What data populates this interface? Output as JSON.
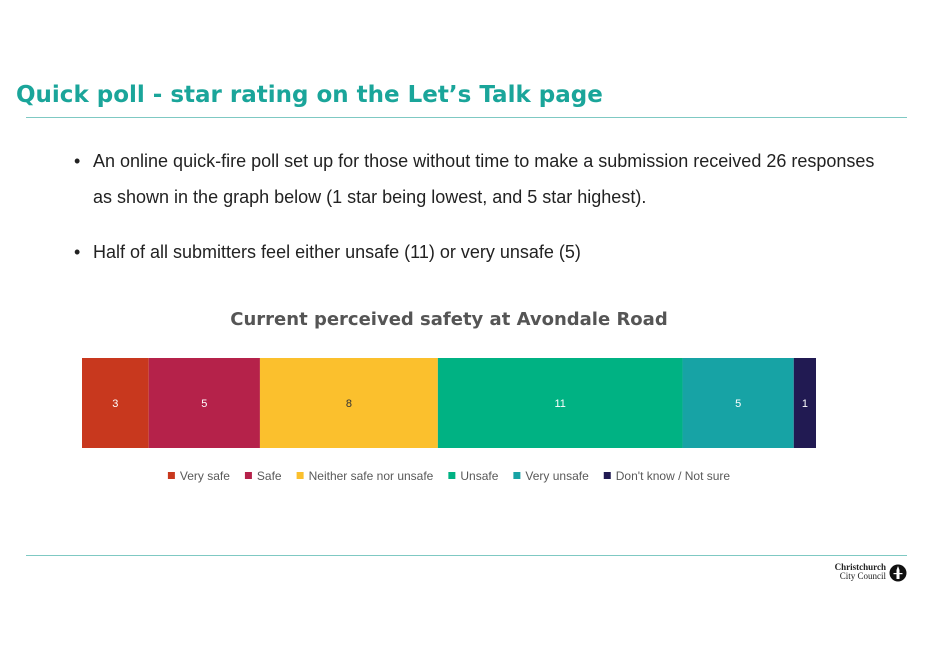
{
  "slide": {
    "title": "Quick poll - star rating on the Let’s Talk page",
    "bullets": [
      "An online quick-fire poll set up for those without time to make a submission received 26 responses as shown in the graph below (1 star being lowest, and 5 star highest).",
      "Half of all submitters feel either unsafe (11) or very unsafe (5)"
    ],
    "bullet_glyph": "•"
  },
  "logo": {
    "line1": "Christchurch",
    "line2": "City Council"
  },
  "chart_data": {
    "type": "bar",
    "orientation": "horizontal-stacked-100",
    "title": "Current perceived safety at Avondale Road",
    "categories": [
      "Current perceived safety at Avondale Road"
    ],
    "series": [
      {
        "name": "Very safe",
        "values": [
          3
        ],
        "color": "#c8381e"
      },
      {
        "name": "Safe",
        "values": [
          5
        ],
        "color": "#b5224a"
      },
      {
        "name": "Neither safe nor unsafe",
        "values": [
          8
        ],
        "color": "#fbc02d"
      },
      {
        "name": "Unsafe",
        "values": [
          11
        ],
        "color": "#00b283"
      },
      {
        "name": "Very unsafe",
        "values": [
          5
        ],
        "color": "#17a3a5"
      },
      {
        "name": "Don't know / Not sure",
        "values": [
          1
        ],
        "color": "#211a52"
      }
    ],
    "data_labels": true,
    "legend_position": "bottom",
    "grid": false,
    "xlabel": "",
    "ylabel": ""
  }
}
